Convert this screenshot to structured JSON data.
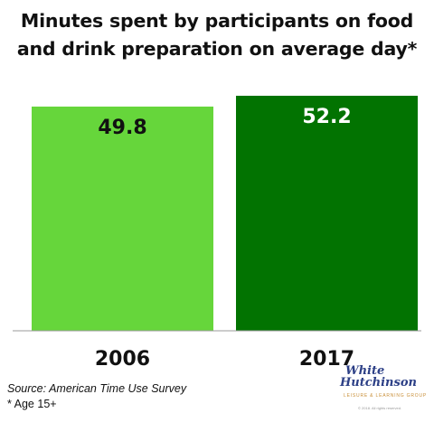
{
  "chart_data": {
    "type": "bar",
    "title_lines": [
      "Minutes spent by participants on food",
      "and drink preparation on average day*"
    ],
    "categories": [
      "2006",
      "2017"
    ],
    "values": [
      49.8,
      52.2
    ],
    "data_labels": [
      "49.8",
      "52.2"
    ],
    "bar_colors": [
      "#66d63b",
      "#027301"
    ],
    "ylim": [
      0,
      54.2
    ],
    "grid": false,
    "legend": "none"
  },
  "footnote": {
    "source": "Source: American Time Use Survey",
    "note": "* Age 15+"
  },
  "logo": {
    "line1": "White",
    "line2": "Hutchinson",
    "tagline": "LEISURE & LEARNING GROUP",
    "copyright": "© 2018. All rights reserved."
  }
}
